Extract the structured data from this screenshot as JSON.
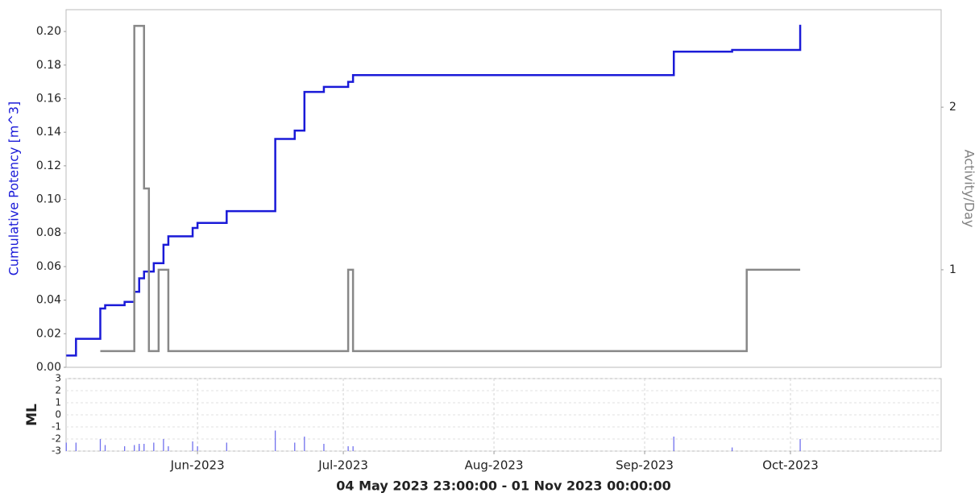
{
  "chart_data": [
    {
      "type": "step",
      "ylabel": "Cumulative Potency [m^3]",
      "y2label": "Activity/Day",
      "xlim": [
        "2023-05-04T23:00",
        "2023-11-01T00:00"
      ],
      "ylim": [
        0,
        0.213
      ],
      "yticks": [
        {
          "value": 0,
          "label": "0.00"
        },
        {
          "value": 0.02,
          "label": "0.02"
        },
        {
          "value": 0.04,
          "label": "0.04"
        },
        {
          "value": 0.06,
          "label": "0.06"
        },
        {
          "value": 0.08,
          "label": "0.08"
        },
        {
          "value": 0.1,
          "label": "0.10"
        },
        {
          "value": 0.12,
          "label": "0.12"
        },
        {
          "value": 0.14,
          "label": "0.14"
        },
        {
          "value": 0.16,
          "label": "0.16"
        },
        {
          "value": 0.18,
          "label": "0.18"
        },
        {
          "value": 0.2,
          "label": "0.20"
        }
      ],
      "y2lim": [
        0.4,
        2.6
      ],
      "y2ticks": [
        1,
        2
      ],
      "ylabel_color": "#1a1ad8",
      "y2label_color": "#808080",
      "series": [
        {
          "color": "#1a1ad8",
          "axis": "y",
          "x": [
            "2023-05-05",
            "2023-05-07",
            "2023-05-12",
            "2023-05-13",
            "2023-05-17",
            "2023-05-19",
            "2023-05-20",
            "2023-05-21",
            "2023-05-23",
            "2023-05-25",
            "2023-05-26",
            "2023-05-31",
            "2023-06-01",
            "2023-06-07",
            "2023-06-17",
            "2023-06-21",
            "2023-06-23",
            "2023-06-27",
            "2023-07-02",
            "2023-07-03",
            "2023-09-07",
            "2023-09-19",
            "2023-10-03"
          ],
          "values": [
            0.007,
            0.017,
            0.035,
            0.037,
            0.039,
            0.045,
            0.053,
            0.057,
            0.062,
            0.073,
            0.078,
            0.083,
            0.086,
            0.093,
            0.136,
            0.141,
            0.164,
            0.167,
            0.17,
            0.174,
            0.188,
            0.189,
            0.204
          ]
        },
        {
          "color": "#888888",
          "axis": "y2",
          "x": [
            "2023-05-12",
            "2023-05-19",
            "2023-05-21",
            "2023-05-22",
            "2023-05-24",
            "2023-05-26",
            "2023-07-02",
            "2023-07-03",
            "2023-09-22",
            "2023-10-03"
          ],
          "values": [
            0.5,
            2.5,
            1.5,
            0.5,
            1,
            0.5,
            1,
            0.5,
            1,
            1
          ]
        }
      ]
    },
    {
      "type": "stem",
      "ylabel": "ML",
      "xlabel": "04 May 2023 23:00:00 - 01 Nov 2023 00:00:00",
      "xlim": [
        "2023-05-04T23:00",
        "2023-11-01T00:00"
      ],
      "xticks": [
        {
          "value": "2023-06-01",
          "label": "Jun-2023"
        },
        {
          "value": "2023-07-01",
          "label": "Jul-2023"
        },
        {
          "value": "2023-08-01",
          "label": "Aug-2023"
        },
        {
          "value": "2023-09-01",
          "label": "Sep-2023"
        },
        {
          "value": "2023-10-01",
          "label": "Oct-2023"
        }
      ],
      "ylim": [
        -3,
        3
      ],
      "yticks": [
        -3,
        -2,
        -1,
        0,
        1,
        2,
        3
      ],
      "grid": true,
      "color": "#7070ee",
      "x": [
        "2023-05-05",
        "2023-05-07",
        "2023-05-12",
        "2023-05-13",
        "2023-05-17",
        "2023-05-19",
        "2023-05-20",
        "2023-05-20",
        "2023-05-21",
        "2023-05-23",
        "2023-05-25",
        "2023-05-26",
        "2023-05-31",
        "2023-06-01",
        "2023-06-07",
        "2023-06-17",
        "2023-06-21",
        "2023-06-23",
        "2023-06-27",
        "2023-07-02",
        "2023-07-03",
        "2023-09-07",
        "2023-09-19",
        "2023-10-03"
      ],
      "values": [
        -2.3,
        -2.3,
        -2.0,
        -2.5,
        -2.6,
        -2.5,
        -2.4,
        -2.6,
        -2.4,
        -2.3,
        -2.0,
        -2.6,
        -2.2,
        -2.6,
        -2.3,
        -1.3,
        -2.3,
        -1.8,
        -2.4,
        -2.6,
        -2.6,
        -1.8,
        -2.7,
        -2.0
      ]
    }
  ]
}
